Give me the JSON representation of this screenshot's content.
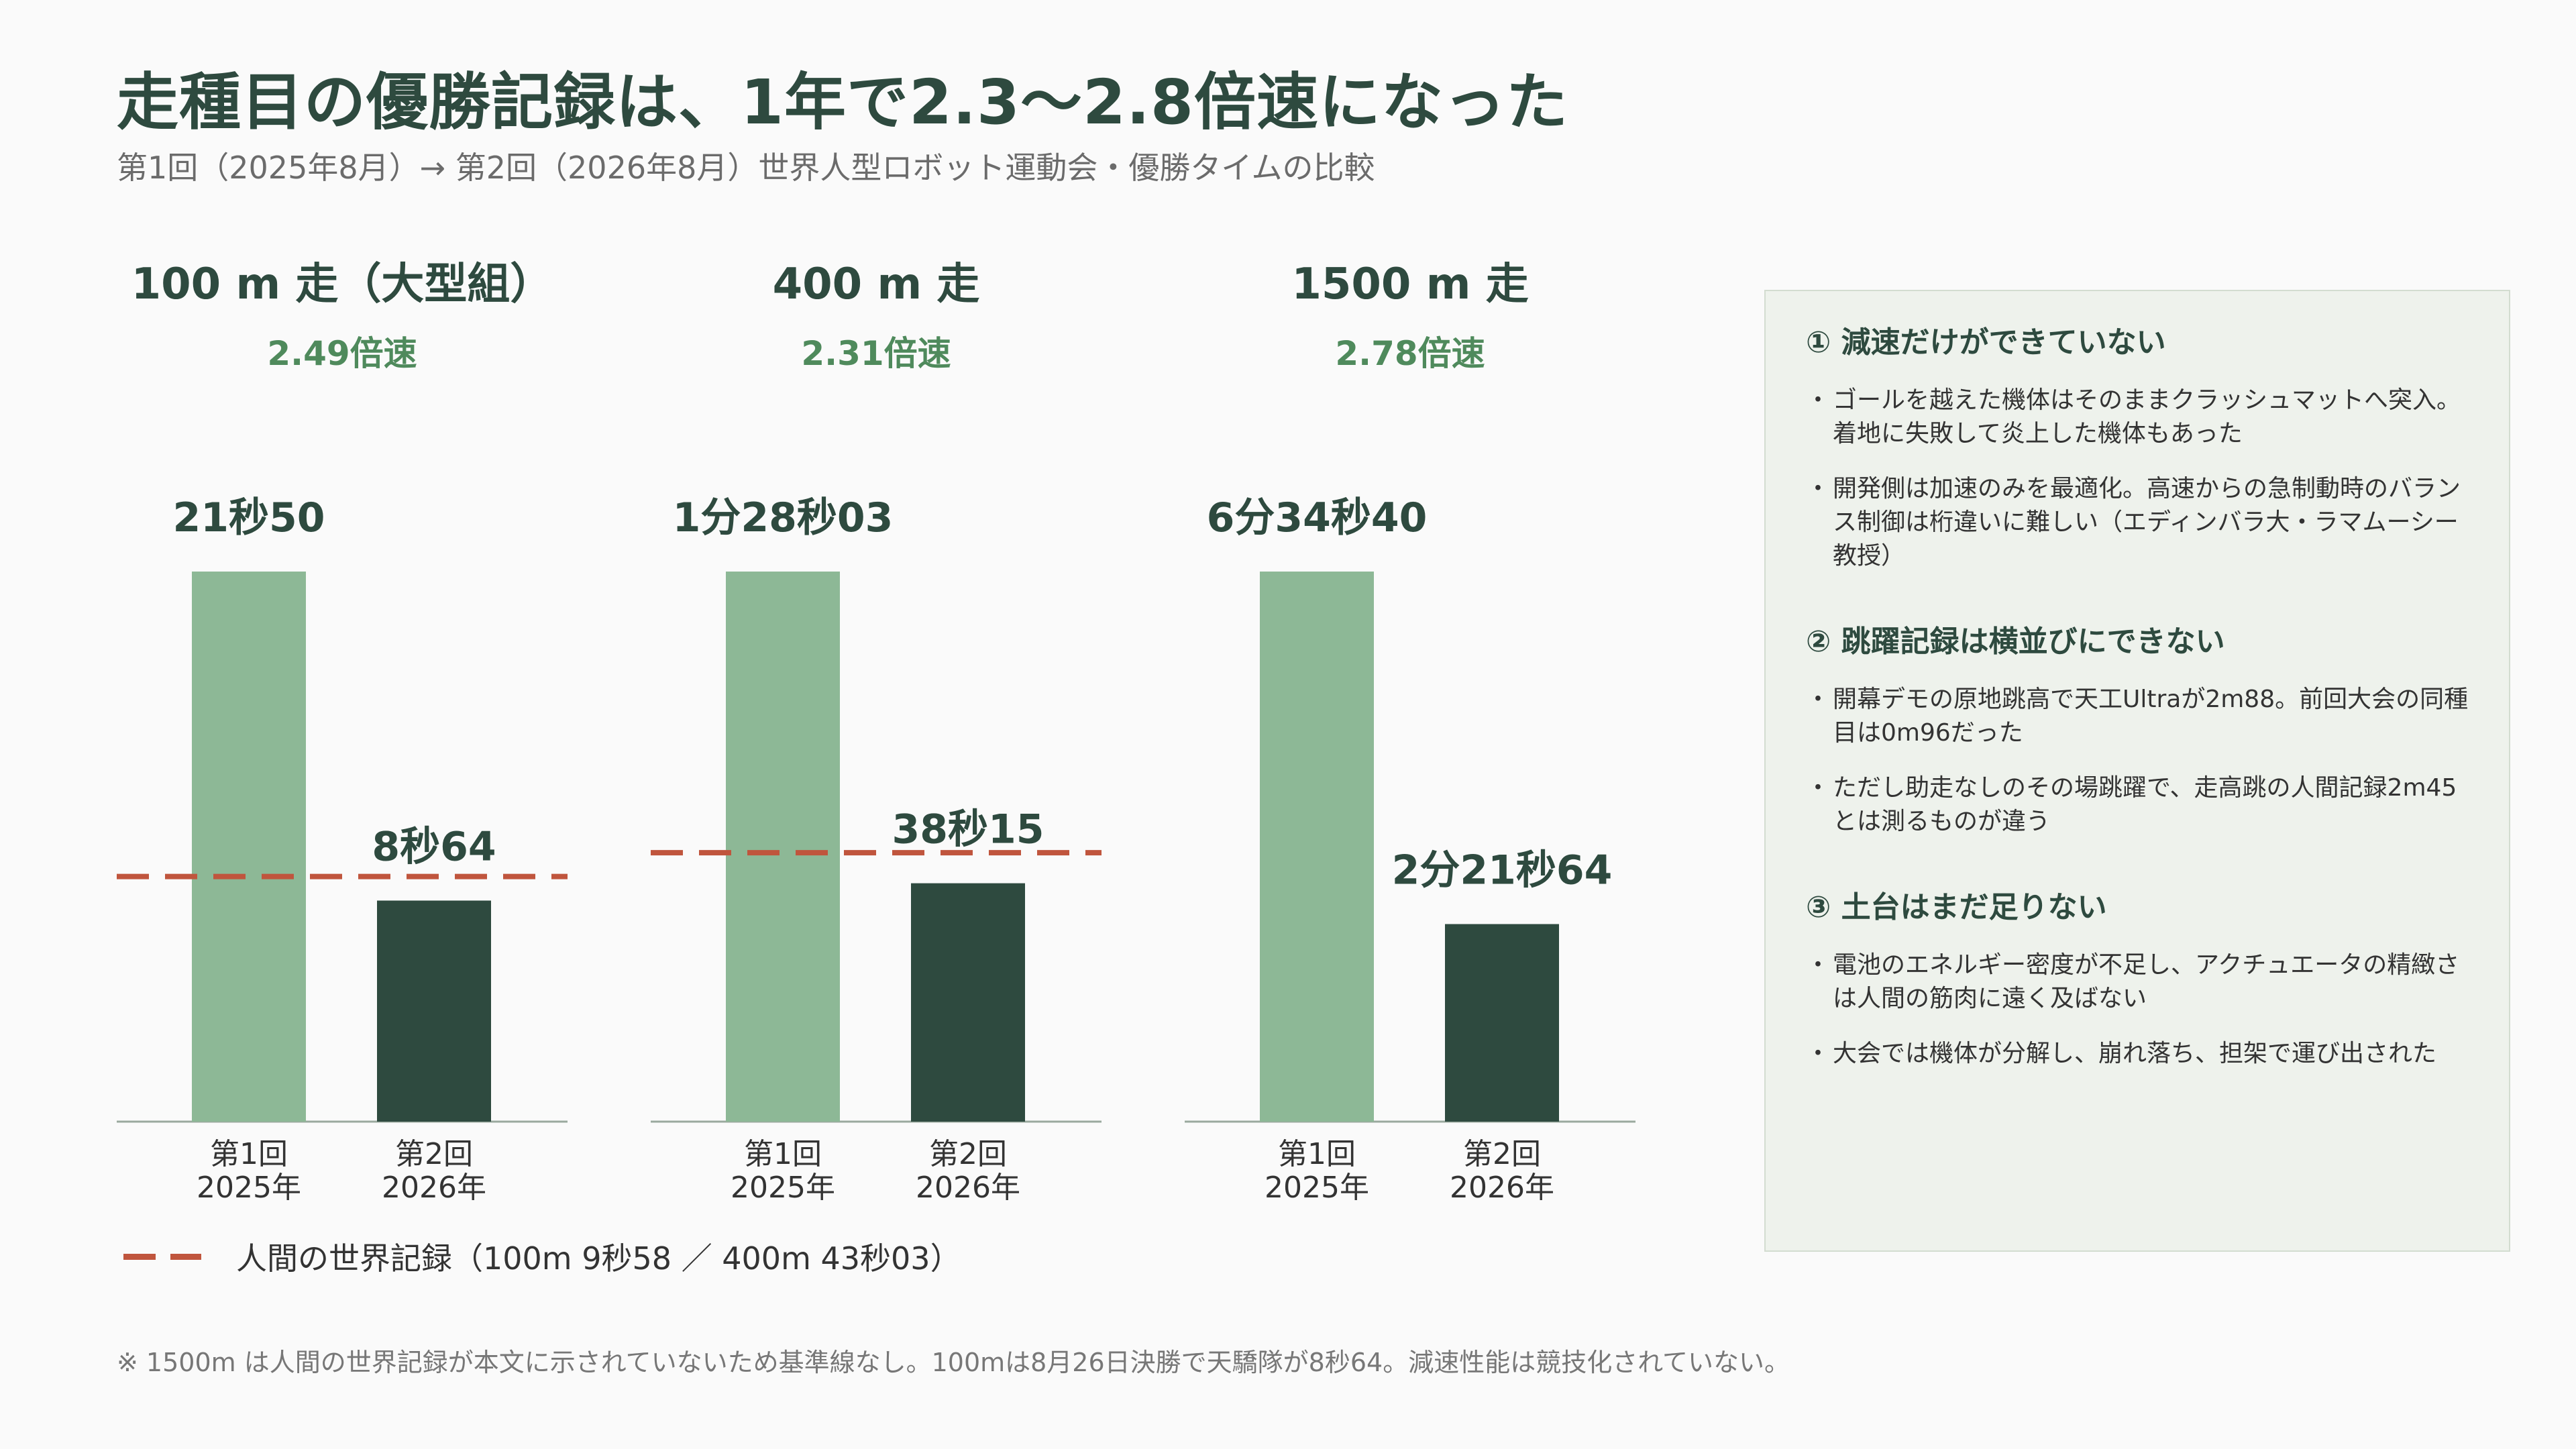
{
  "title": "走種目の優勝記録は、1年で2.3〜2.8倍速になった",
  "subtitle": "第1回（2025年8月）→ 第2回（2026年8月）世界人型ロボット運動会・優勝タイムの比較",
  "colors": {
    "first": "#8db896",
    "second": "#2e4a3f",
    "record": "#c0553d",
    "speedup": "#4f8a5c"
  },
  "chart_data": [
    {
      "type": "bar",
      "title": "100 m 走（大型組）",
      "subtitle": "2.49倍速",
      "categories": [
        [
          "第1回",
          "2025年"
        ],
        [
          "第2回",
          "2026年"
        ]
      ],
      "values": [
        21.5,
        8.64
      ],
      "value_labels": [
        "21秒50",
        "8秒64"
      ],
      "ylim": [
        0,
        21.5
      ],
      "reference_line": {
        "value": 9.58
      }
    },
    {
      "type": "bar",
      "title": "400 m 走",
      "subtitle": "2.31倍速",
      "categories": [
        [
          "第1回",
          "2025年"
        ],
        [
          "第2回",
          "2026年"
        ]
      ],
      "values": [
        88.03,
        38.15
      ],
      "value_labels": [
        "1分28秒03",
        "38秒15"
      ],
      "ylim": [
        0,
        88.03
      ],
      "reference_line": {
        "value": 43.03
      }
    },
    {
      "type": "bar",
      "title": "1500 m 走",
      "subtitle": "2.78倍速",
      "categories": [
        [
          "第1回",
          "2025年"
        ],
        [
          "第2回",
          "2026年"
        ]
      ],
      "values": [
        394.4,
        141.64
      ],
      "value_labels": [
        "6分34秒40",
        "2分21秒64"
      ],
      "ylim": [
        0,
        394.4
      ],
      "reference_line": null
    }
  ],
  "legend": {
    "label": "人間の世界記録（100m 9秒58 ／ 400m 43秒03）"
  },
  "footnote": "※ 1500m は人間の世界記録が本文に示されていないため基準線なし。100mは8月26日決勝で天驕隊が8秒64。減速性能は競技化されていない。",
  "panel": {
    "sections": [
      {
        "heading": "① 減速だけができていない",
        "bullets": [
          "ゴールを越えた機体はそのままクラッシュマットへ突入。着地に失敗して炎上した機体もあった",
          "開発側は加速のみを最適化。高速からの急制動時のバランス制御は桁違いに難しい（エディンバラ大・ラマムーシー教授）"
        ]
      },
      {
        "heading": "② 跳躍記録は横並びにできない",
        "bullets": [
          "開幕デモの原地跳高で天工Ultraが2m88。前回大会の同種目は0m96だった",
          "ただし助走なしのその場跳躍で、走高跳の人間記録2m45とは測るものが違う"
        ]
      },
      {
        "heading": "③ 土台はまだ足りない",
        "bullets": [
          "電池のエネルギー密度が不足し、アクチュエータの精緻さは人間の筋肉に遠く及ばない",
          "大会では機体が分解し、崩れ落ち、担架で運び出された"
        ]
      }
    ]
  }
}
